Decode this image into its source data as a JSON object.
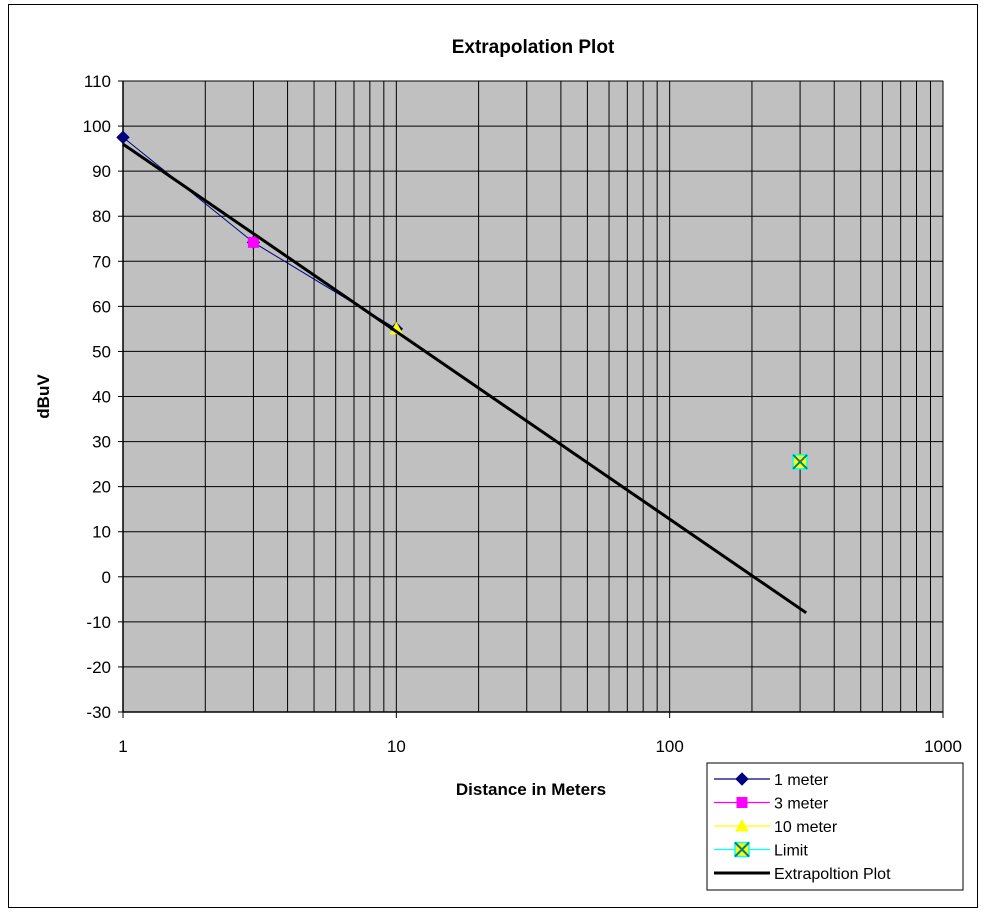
{
  "chart_data": {
    "type": "scatter",
    "title": "Extrapolation Plot",
    "xlabel": "Distance in Meters",
    "ylabel": "dBuV",
    "xscale": "log",
    "xlim": [
      1,
      1000
    ],
    "ylim": [
      -30,
      110
    ],
    "x_ticks": [
      "1",
      "10",
      "100",
      "1000"
    ],
    "y_ticks": [
      "110",
      "100",
      "90",
      "80",
      "70",
      "60",
      "50",
      "40",
      "30",
      "20",
      "10",
      "0",
      "-10",
      "-20",
      "-30"
    ],
    "grid": true,
    "legend_position": "bottom-right",
    "plot_background": "#c0c0c0",
    "series": [
      {
        "name": "1 meter",
        "color": "#000080",
        "marker": "diamond",
        "points": [
          [
            1,
            97.5
          ],
          [
            3,
            74.2
          ],
          [
            10,
            55.0
          ]
        ]
      },
      {
        "name": "3 meter",
        "color": "#ff00ff",
        "marker": "square",
        "points": [
          [
            3,
            74.2
          ]
        ]
      },
      {
        "name": "10 meter",
        "color": "#ffff00",
        "marker": "triangle",
        "points": [
          [
            10,
            55.0
          ]
        ]
      },
      {
        "name": "Limit",
        "color": "#00ffff",
        "marker": "x-square",
        "points": [
          [
            300,
            25.5
          ]
        ]
      },
      {
        "name": "Extrapoltion Plot",
        "color": "#000000",
        "marker": "none",
        "line_width": 3,
        "points": [
          [
            1,
            96.0
          ],
          [
            316,
            -8.0
          ]
        ]
      }
    ]
  }
}
